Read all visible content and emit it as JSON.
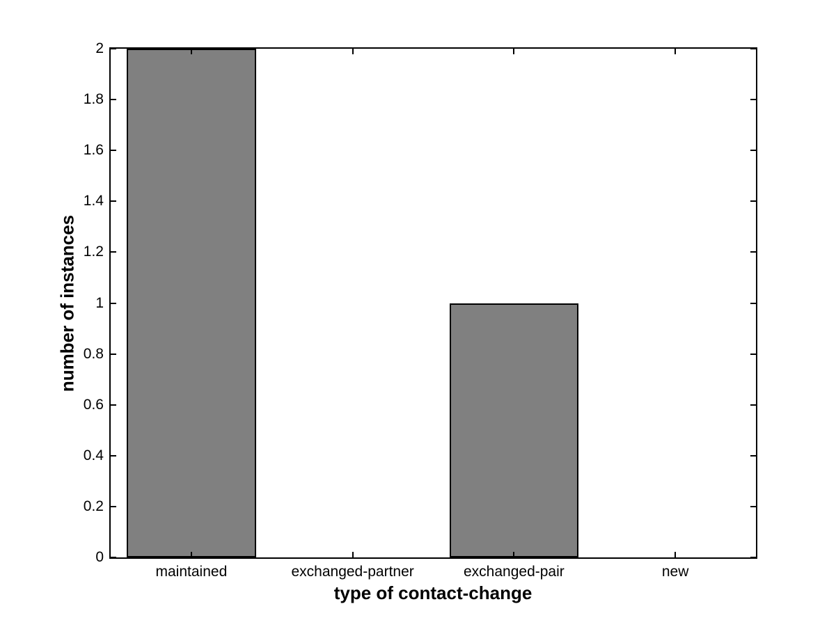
{
  "chart_data": {
    "type": "bar",
    "title": "",
    "categories": [
      "maintained",
      "exchanged-partner",
      "exchanged-pair",
      "new"
    ],
    "values": [
      2,
      0,
      1,
      0
    ],
    "xlabel": "type of contact-change",
    "ylabel": "number of instances",
    "ylim": [
      0,
      2
    ],
    "yticks": [
      0,
      0.2,
      0.4,
      0.6,
      0.8,
      1,
      1.2,
      1.4,
      1.6,
      1.8,
      2
    ],
    "ytick_labels": [
      "0",
      "0.2",
      "0.4",
      "0.6",
      "0.8",
      "1",
      "1.2",
      "1.4",
      "1.6",
      "1.8",
      "2"
    ],
    "bar_width_frac": 0.8,
    "bar_color": "#808080",
    "bar_edge_color": "#000000",
    "axis_color": "#000000",
    "background_color": "#ffffff",
    "grid": false,
    "legend": "none"
  }
}
